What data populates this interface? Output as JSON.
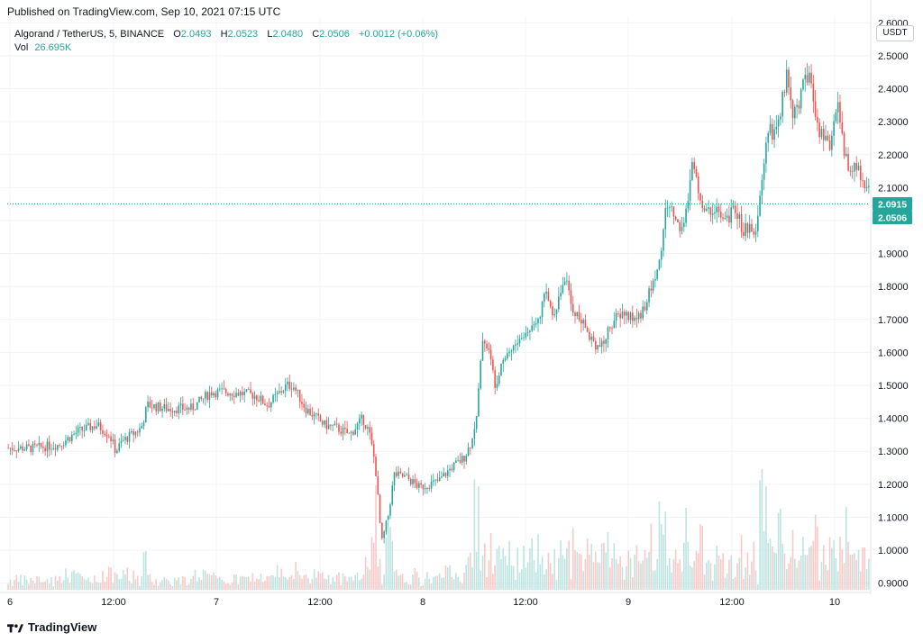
{
  "header": {
    "published": "Published on TradingView.com, Sep 10, 2021 07:15 UTC"
  },
  "legend": {
    "symbol": "Algorand / TetherUS, 5, BINANCE",
    "open_label": "O",
    "open": "2.0493",
    "high_label": "H",
    "high": "2.0523",
    "low_label": "L",
    "low": "2.0480",
    "close_label": "C",
    "close": "2.0506",
    "change": "+0.0012 (+0.06%)",
    "vol_label": "Vol",
    "vol": "26.695K"
  },
  "currency_label": "USDT",
  "price_labels": {
    "upper": "2.0915",
    "lower": "2.0506"
  },
  "footer": {
    "brand": "TradingView"
  },
  "colors": {
    "up": "#26a69a",
    "down": "#ef5350",
    "vol_up": "#b2dfdb",
    "vol_down": "#f8c0bd",
    "label_bg": "#26a69a"
  },
  "chart_data": {
    "type": "candlestick",
    "title": "Algorand / TetherUS, 5, BINANCE",
    "ylim": [
      0.88,
      2.62
    ],
    "y_ticks": [
      "2.6000",
      "2.5000",
      "2.4000",
      "2.3000",
      "2.2000",
      "2.1000",
      "2.0000",
      "1.9000",
      "1.8000",
      "1.7000",
      "1.6000",
      "1.5000",
      "1.4000",
      "1.3000",
      "1.2000",
      "1.1000",
      "1.0000",
      "0.9000"
    ],
    "x_ticks": [
      "6",
      "12:00",
      "7",
      "12:00",
      "8",
      "12:00",
      "9",
      "12:00",
      "10"
    ],
    "grid": true,
    "last_close": 2.0506,
    "price_path": [
      [
        0,
        1.31
      ],
      [
        4,
        1.31
      ],
      [
        8,
        1.32
      ],
      [
        11,
        1.36
      ],
      [
        14,
        1.38
      ],
      [
        16,
        1.35
      ],
      [
        17,
        1.3
      ],
      [
        18,
        1.33
      ],
      [
        21,
        1.37
      ],
      [
        22,
        1.44
      ],
      [
        25,
        1.43
      ],
      [
        29,
        1.43
      ],
      [
        32,
        1.48
      ],
      [
        35,
        1.48
      ],
      [
        39,
        1.47
      ],
      [
        41,
        1.44
      ],
      [
        44,
        1.5
      ],
      [
        45,
        1.5
      ],
      [
        47,
        1.43
      ],
      [
        50,
        1.38
      ],
      [
        52,
        1.37
      ],
      [
        54,
        1.35
      ],
      [
        56,
        1.4
      ],
      [
        57,
        1.36
      ],
      [
        58,
        1.26
      ],
      [
        59,
        1.02
      ],
      [
        60,
        1.1
      ],
      [
        61,
        1.23
      ],
      [
        63,
        1.22
      ],
      [
        65,
        1.19
      ],
      [
        68,
        1.21
      ],
      [
        70,
        1.25
      ],
      [
        72,
        1.28
      ],
      [
        73,
        1.32
      ],
      [
        74,
        1.4
      ],
      [
        75,
        1.65
      ],
      [
        76,
        1.6
      ],
      [
        77,
        1.5
      ],
      [
        78,
        1.58
      ],
      [
        80,
        1.62
      ],
      [
        82,
        1.66
      ],
      [
        84,
        1.72
      ],
      [
        85,
        1.78
      ],
      [
        86,
        1.72
      ],
      [
        87,
        1.76
      ],
      [
        88,
        1.83
      ],
      [
        89,
        1.74
      ],
      [
        91,
        1.68
      ],
      [
        93,
        1.62
      ],
      [
        94,
        1.62
      ],
      [
        95,
        1.68
      ],
      [
        97,
        1.72
      ],
      [
        99,
        1.7
      ],
      [
        100,
        1.72
      ],
      [
        101,
        1.76
      ],
      [
        103,
        1.88
      ],
      [
        104,
        2.05
      ],
      [
        105,
        2.03
      ],
      [
        106,
        1.98
      ],
      [
        107,
        2.0
      ],
      [
        108,
        2.18
      ],
      [
        109,
        2.1
      ],
      [
        110,
        2.02
      ],
      [
        112,
        2.04
      ],
      [
        113,
        1.99
      ],
      [
        115,
        2.04
      ],
      [
        116,
        1.97
      ],
      [
        117,
        1.98
      ],
      [
        118,
        1.93
      ],
      [
        119,
        2.1
      ],
      [
        120,
        2.28
      ],
      [
        121,
        2.26
      ],
      [
        122,
        2.32
      ],
      [
        123,
        2.45
      ],
      [
        124,
        2.33
      ],
      [
        125,
        2.35
      ],
      [
        126,
        2.45
      ],
      [
        127,
        2.41
      ],
      [
        128,
        2.28
      ],
      [
        129,
        2.24
      ],
      [
        130,
        2.22
      ],
      [
        131,
        2.38
      ],
      [
        132,
        2.22
      ],
      [
        133,
        2.14
      ],
      [
        134,
        2.17
      ],
      [
        135,
        2.12
      ],
      [
        136,
        2.09
      ]
    ],
    "candle_count": 420,
    "x_max": 136
  }
}
